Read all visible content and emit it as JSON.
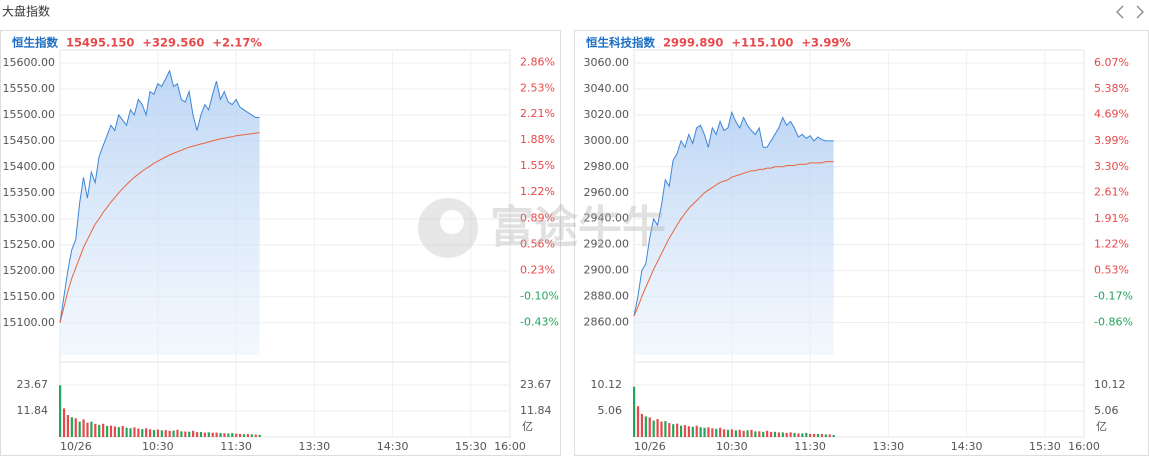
{
  "header": {
    "title": "大盘指数"
  },
  "watermark": "富途牛牛",
  "chart_data": [
    {
      "type": "line",
      "title": "恒生指数",
      "quote": {
        "price": "15495.150",
        "change": "+329.560",
        "change_pct": "+2.17%"
      },
      "x": [
        0,
        3,
        6,
        9,
        12,
        15,
        18,
        21,
        24,
        27,
        30,
        33,
        36,
        39,
        42,
        45,
        48,
        51,
        54,
        57,
        60,
        63,
        66,
        69,
        72,
        75,
        78,
        81,
        84,
        87,
        90,
        93,
        96,
        99,
        102,
        105,
        108,
        111,
        114,
        117,
        120,
        123,
        126,
        129,
        132,
        135,
        138,
        141,
        144,
        147,
        150,
        153
      ],
      "series": [
        {
          "color": "#3d86d8",
          "values": [
            15100,
            15150,
            15200,
            15240,
            15260,
            15330,
            15380,
            15340,
            15390,
            15370,
            15420,
            15440,
            15460,
            15480,
            15470,
            15500,
            15490,
            15480,
            15510,
            15500,
            15530,
            15520,
            15500,
            15545,
            15540,
            15560,
            15555,
            15570,
            15585,
            15555,
            15560,
            15530,
            15525,
            15545,
            15500,
            15470,
            15500,
            15520,
            15510,
            15540,
            15565,
            15530,
            15545,
            15525,
            15520,
            15530,
            15515,
            15510,
            15505,
            15500,
            15495,
            15495
          ]
        },
        {
          "color": "#e8643c",
          "values": [
            15100,
            15130,
            15160,
            15185,
            15205,
            15225,
            15245,
            15260,
            15275,
            15290,
            15300,
            15312,
            15322,
            15332,
            15341,
            15350,
            15358,
            15366,
            15373,
            15380,
            15386,
            15392,
            15397,
            15402,
            15407,
            15411,
            15415,
            15419,
            15423,
            15426,
            15429,
            15432,
            15435,
            15438,
            15440,
            15442,
            15444,
            15446,
            15448,
            15450,
            15452,
            15454,
            15455,
            15457,
            15458,
            15460,
            15461,
            15462,
            15463,
            15464,
            15465,
            15466
          ]
        }
      ],
      "xlim": [
        0,
        345
      ],
      "xticks": [
        {
          "value": 0,
          "label": "10/26"
        },
        {
          "value": 75,
          "label": "10:30"
        },
        {
          "value": 135,
          "label": "11:30"
        },
        {
          "value": 195,
          "label": "13:30"
        },
        {
          "value": 255,
          "label": "14:30"
        },
        {
          "value": 315,
          "label": "15:30"
        },
        {
          "value": 345,
          "label": "16:00"
        }
      ],
      "ylim": [
        15038,
        15625
      ],
      "yticks": [
        {
          "value": 15100,
          "label": "15100.00"
        },
        {
          "value": 15150,
          "label": "15150.00"
        },
        {
          "value": 15200,
          "label": "15200.00"
        },
        {
          "value": 15250,
          "label": "15250.00"
        },
        {
          "value": 15300,
          "label": "15300.00"
        },
        {
          "value": 15350,
          "label": "15350.00"
        },
        {
          "value": 15400,
          "label": "15400.00"
        },
        {
          "value": 15450,
          "label": "15450.00"
        },
        {
          "value": 15500,
          "label": "15500.00"
        },
        {
          "value": 15550,
          "label": "15550.00"
        },
        {
          "value": 15600,
          "label": "15600.00"
        }
      ],
      "y2lim": [
        -0.84,
        3.02
      ],
      "y2ticks": [
        {
          "value": -0.43,
          "label": "-0.43%"
        },
        {
          "value": -0.1,
          "label": "-0.10%"
        },
        {
          "value": 0.23,
          "label": "0.23%"
        },
        {
          "value": 0.56,
          "label": "0.56%"
        },
        {
          "value": 0.89,
          "label": "0.89%"
        },
        {
          "value": 1.22,
          "label": "1.22%"
        },
        {
          "value": 1.55,
          "label": "1.55%"
        },
        {
          "value": 1.88,
          "label": "1.88%"
        },
        {
          "value": 2.21,
          "label": "2.21%"
        },
        {
          "value": 2.53,
          "label": "2.53%"
        },
        {
          "value": 2.86,
          "label": "2.86%"
        }
      ],
      "volume": {
        "values": [
          23.5,
          13,
          10,
          9,
          8.5,
          7,
          8,
          6.5,
          7,
          6,
          5.5,
          6,
          5,
          5.2,
          4.8,
          4.5,
          5,
          4.2,
          4,
          4.4,
          3.8,
          3.6,
          4,
          3.5,
          3.2,
          3.4,
          3,
          3.1,
          2.8,
          2.9,
          3.3,
          2.6,
          2.5,
          2.4,
          2.8,
          2.2,
          2.3,
          2,
          2.1,
          1.9,
          2,
          1.8,
          1.7,
          1.6,
          1.8,
          1.5,
          1.4,
          1.3,
          1.4,
          1.2,
          1.1,
          1
        ],
        "colors": [
          "#22a55b",
          "#e9484a",
          "#e9484a",
          "#22a55b",
          "#e9484a",
          "#22a55b",
          "#e9484a",
          "#e9484a",
          "#22a55b",
          "#e9484a",
          "#22a55b",
          "#e9484a",
          "#22a55b",
          "#e9484a",
          "#e9484a",
          "#22a55b",
          "#e9484a",
          "#22a55b",
          "#22a55b",
          "#e9484a",
          "#e9484a",
          "#22a55b",
          "#e9484a",
          "#e9484a",
          "#22a55b",
          "#e9484a",
          "#22a55b",
          "#e9484a",
          "#e9484a",
          "#22a55b",
          "#e9484a",
          "#22a55b",
          "#e9484a",
          "#22a55b",
          "#e9484a",
          "#e9484a",
          "#22a55b",
          "#e9484a",
          "#22a55b",
          "#e9484a",
          "#e9484a",
          "#22a55b",
          "#e9484a",
          "#22a55b",
          "#22a55b",
          "#e9484a",
          "#e9484a",
          "#22a55b",
          "#e9484a",
          "#22a55b",
          "#e9484a",
          "#22a55b"
        ],
        "ylim": [
          0,
          28.2
        ],
        "yticks": [
          11.84,
          23.67
        ],
        "unit": "亿"
      }
    },
    {
      "type": "line",
      "title": "恒生科技指数",
      "quote": {
        "price": "2999.890",
        "change": "+115.100",
        "change_pct": "+3.99%"
      },
      "x": [
        0,
        3,
        6,
        9,
        12,
        15,
        18,
        21,
        24,
        27,
        30,
        33,
        36,
        39,
        42,
        45,
        48,
        51,
        54,
        57,
        60,
        63,
        66,
        69,
        72,
        75,
        78,
        81,
        84,
        87,
        90,
        93,
        96,
        99,
        102,
        105,
        108,
        111,
        114,
        117,
        120,
        123,
        126,
        129,
        132,
        135,
        138,
        141,
        144,
        147,
        150,
        153
      ],
      "series": [
        {
          "color": "#3d86d8",
          "values": [
            2865,
            2880,
            2900,
            2905,
            2925,
            2940,
            2935,
            2950,
            2970,
            2965,
            2985,
            2990,
            3000,
            2995,
            3005,
            2998,
            3010,
            3012,
            3005,
            2995,
            3010,
            3005,
            3015,
            3008,
            3010,
            3022,
            3015,
            3010,
            3018,
            3012,
            3008,
            3005,
            3010,
            2995,
            2995,
            3000,
            3005,
            3010,
            3018,
            3012,
            3015,
            3010,
            3003,
            3005,
            3002,
            3004,
            3000,
            3003,
            3001,
            3000,
            3000,
            3000
          ]
        },
        {
          "color": "#e8643c",
          "values": [
            2865,
            2872,
            2880,
            2887,
            2894,
            2901,
            2907,
            2913,
            2919,
            2925,
            2930,
            2935,
            2940,
            2944,
            2948,
            2951,
            2954,
            2957,
            2960,
            2962,
            2964,
            2966,
            2968,
            2969,
            2970,
            2972,
            2973,
            2974,
            2975,
            2976,
            2977,
            2977,
            2978,
            2978,
            2979,
            2979,
            2980,
            2980,
            2980,
            2981,
            2981,
            2981,
            2982,
            2982,
            2982,
            2983,
            2983,
            2983,
            2983,
            2984,
            2984,
            2984
          ]
        }
      ],
      "xlim": [
        0,
        345
      ],
      "xticks": [
        {
          "value": 0,
          "label": "10/26"
        },
        {
          "value": 75,
          "label": "10:30"
        },
        {
          "value": 135,
          "label": "11:30"
        },
        {
          "value": 195,
          "label": "13:30"
        },
        {
          "value": 255,
          "label": "14:30"
        },
        {
          "value": 315,
          "label": "15:30"
        },
        {
          "value": 345,
          "label": "16:00"
        }
      ],
      "ylim": [
        2835,
        3070
      ],
      "yticks": [
        {
          "value": 2860,
          "label": "2860.00"
        },
        {
          "value": 2880,
          "label": "2880.00"
        },
        {
          "value": 2900,
          "label": "2900.00"
        },
        {
          "value": 2920,
          "label": "2920.00"
        },
        {
          "value": 2940,
          "label": "2940.00"
        },
        {
          "value": 2960,
          "label": "2960.00"
        },
        {
          "value": 2980,
          "label": "2980.00"
        },
        {
          "value": 3000,
          "label": "3000.00"
        },
        {
          "value": 3020,
          "label": "3020.00"
        },
        {
          "value": 3040,
          "label": "3040.00"
        },
        {
          "value": 3060,
          "label": "3060.00"
        }
      ],
      "y2lim": [
        -1.73,
        6.42
      ],
      "y2ticks": [
        {
          "value": -0.86,
          "label": "-0.86%"
        },
        {
          "value": -0.17,
          "label": "-0.17%"
        },
        {
          "value": 0.53,
          "label": "0.53%"
        },
        {
          "value": 1.22,
          "label": "1.22%"
        },
        {
          "value": 1.91,
          "label": "1.91%"
        },
        {
          "value": 2.61,
          "label": "2.61%"
        },
        {
          "value": 3.3,
          "label": "3.30%"
        },
        {
          "value": 3.99,
          "label": "3.99%"
        },
        {
          "value": 4.69,
          "label": "4.69%"
        },
        {
          "value": 5.38,
          "label": "5.38%"
        },
        {
          "value": 6.07,
          "label": "6.07%"
        }
      ],
      "volume": {
        "values": [
          9.8,
          6,
          4.5,
          4,
          3.8,
          3.2,
          3.5,
          3,
          3.1,
          2.7,
          2.5,
          2.6,
          2.2,
          2.3,
          2.1,
          2,
          2.2,
          1.9,
          1.8,
          1.9,
          1.7,
          1.6,
          1.8,
          1.5,
          1.4,
          1.5,
          1.3,
          1.4,
          1.2,
          1.3,
          1.4,
          1.1,
          1.1,
          1,
          1.2,
          1,
          1,
          0.9,
          0.9,
          0.8,
          0.9,
          0.8,
          0.7,
          0.7,
          0.8,
          0.6,
          0.6,
          0.6,
          0.6,
          0.5,
          0.5,
          0.4
        ],
        "colors": [
          "#22a55b",
          "#e9484a",
          "#e9484a",
          "#22a55b",
          "#e9484a",
          "#22a55b",
          "#e9484a",
          "#e9484a",
          "#22a55b",
          "#e9484a",
          "#22a55b",
          "#e9484a",
          "#22a55b",
          "#e9484a",
          "#e9484a",
          "#22a55b",
          "#e9484a",
          "#22a55b",
          "#22a55b",
          "#e9484a",
          "#e9484a",
          "#22a55b",
          "#e9484a",
          "#e9484a",
          "#22a55b",
          "#e9484a",
          "#22a55b",
          "#e9484a",
          "#e9484a",
          "#22a55b",
          "#e9484a",
          "#22a55b",
          "#e9484a",
          "#22a55b",
          "#e9484a",
          "#e9484a",
          "#22a55b",
          "#e9484a",
          "#22a55b",
          "#e9484a",
          "#e9484a",
          "#22a55b",
          "#e9484a",
          "#22a55b",
          "#22a55b",
          "#e9484a",
          "#e9484a",
          "#22a55b",
          "#e9484a",
          "#22a55b",
          "#e9484a",
          "#22a55b"
        ],
        "ylim": [
          0,
          12.07
        ],
        "yticks": [
          5.06,
          10.12
        ],
        "unit": "亿"
      }
    }
  ]
}
